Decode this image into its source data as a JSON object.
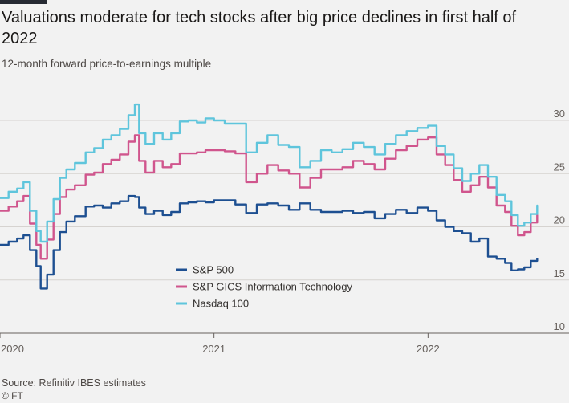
{
  "header": {
    "title": "Valuations moderate for tech stocks after big price declines in first half of 2022",
    "subtitle": "12-month forward price-to-earnings multiple"
  },
  "footer": {
    "source": "Source: Refinitiv IBES estimates",
    "brand": "© FT"
  },
  "chart_data": {
    "type": "line",
    "title": "Valuations moderate for tech stocks after big price declines in first half of 2022",
    "subtitle": "12-month forward price-to-earnings multiple",
    "xlabel": "",
    "ylabel": "",
    "xlim": [
      2020.0,
      2022.52
    ],
    "ylim": [
      10,
      30
    ],
    "yticks": [
      10,
      15,
      20,
      25,
      30
    ],
    "xticks": [
      {
        "value": 2020,
        "label": "2020"
      },
      {
        "value": 2021,
        "label": "2021"
      },
      {
        "value": 2022,
        "label": "2022"
      }
    ],
    "grid": true,
    "legend_position": "lower-left",
    "series": [
      {
        "name": "S&P 500",
        "color": "#1d4f91",
        "points": [
          [
            2020.0,
            18.3
          ],
          [
            2020.04,
            18.6
          ],
          [
            2020.08,
            18.9
          ],
          [
            2020.11,
            19.2
          ],
          [
            2020.14,
            17.8
          ],
          [
            2020.17,
            16.3
          ],
          [
            2020.19,
            14.2
          ],
          [
            2020.22,
            15.5
          ],
          [
            2020.25,
            17.8
          ],
          [
            2020.28,
            19.5
          ],
          [
            2020.31,
            20.5
          ],
          [
            2020.35,
            21.0
          ],
          [
            2020.4,
            21.9
          ],
          [
            2020.44,
            22.0
          ],
          [
            2020.48,
            21.8
          ],
          [
            2020.52,
            22.2
          ],
          [
            2020.56,
            22.4
          ],
          [
            2020.6,
            22.9
          ],
          [
            2020.63,
            22.8
          ],
          [
            2020.65,
            21.8
          ],
          [
            2020.68,
            21.2
          ],
          [
            2020.72,
            21.5
          ],
          [
            2020.76,
            21.1
          ],
          [
            2020.8,
            21.4
          ],
          [
            2020.84,
            22.2
          ],
          [
            2020.88,
            22.3
          ],
          [
            2020.92,
            22.4
          ],
          [
            2020.96,
            22.3
          ],
          [
            2021.0,
            22.5
          ],
          [
            2021.05,
            22.5
          ],
          [
            2021.1,
            22.1
          ],
          [
            2021.15,
            21.3
          ],
          [
            2021.2,
            22.1
          ],
          [
            2021.25,
            22.2
          ],
          [
            2021.3,
            22.0
          ],
          [
            2021.35,
            21.6
          ],
          [
            2021.4,
            22.2
          ],
          [
            2021.45,
            21.6
          ],
          [
            2021.5,
            21.4
          ],
          [
            2021.55,
            21.4
          ],
          [
            2021.6,
            21.5
          ],
          [
            2021.65,
            21.3
          ],
          [
            2021.7,
            21.4
          ],
          [
            2021.75,
            20.8
          ],
          [
            2021.8,
            21.2
          ],
          [
            2021.85,
            21.6
          ],
          [
            2021.9,
            21.3
          ],
          [
            2021.95,
            21.8
          ],
          [
            2022.0,
            21.5
          ],
          [
            2022.04,
            20.6
          ],
          [
            2022.08,
            20.0
          ],
          [
            2022.12,
            19.6
          ],
          [
            2022.16,
            19.4
          ],
          [
            2022.2,
            18.6
          ],
          [
            2022.24,
            18.9
          ],
          [
            2022.28,
            17.2
          ],
          [
            2022.32,
            17.0
          ],
          [
            2022.36,
            16.6
          ],
          [
            2022.39,
            15.9
          ],
          [
            2022.42,
            16.0
          ],
          [
            2022.45,
            16.2
          ],
          [
            2022.48,
            16.8
          ],
          [
            2022.51,
            17.0
          ]
        ]
      },
      {
        "name": "S&P GICS Information Technology",
        "color": "#d0558d",
        "points": [
          [
            2020.0,
            21.5
          ],
          [
            2020.04,
            21.9
          ],
          [
            2020.08,
            22.4
          ],
          [
            2020.11,
            22.9
          ],
          [
            2020.14,
            20.3
          ],
          [
            2020.17,
            18.3
          ],
          [
            2020.19,
            17.0
          ],
          [
            2020.22,
            18.8
          ],
          [
            2020.25,
            21.2
          ],
          [
            2020.28,
            22.8
          ],
          [
            2020.31,
            23.5
          ],
          [
            2020.35,
            23.9
          ],
          [
            2020.4,
            24.9
          ],
          [
            2020.44,
            25.1
          ],
          [
            2020.48,
            25.9
          ],
          [
            2020.52,
            26.3
          ],
          [
            2020.56,
            26.8
          ],
          [
            2020.6,
            28.0
          ],
          [
            2020.63,
            28.6
          ],
          [
            2020.65,
            26.2
          ],
          [
            2020.68,
            25.1
          ],
          [
            2020.72,
            26.2
          ],
          [
            2020.76,
            25.6
          ],
          [
            2020.8,
            25.9
          ],
          [
            2020.84,
            26.9
          ],
          [
            2020.88,
            26.9
          ],
          [
            2020.92,
            27.0
          ],
          [
            2020.96,
            27.2
          ],
          [
            2021.0,
            27.2
          ],
          [
            2021.05,
            27.1
          ],
          [
            2021.1,
            26.9
          ],
          [
            2021.15,
            24.2
          ],
          [
            2021.2,
            25.0
          ],
          [
            2021.25,
            25.8
          ],
          [
            2021.3,
            25.3
          ],
          [
            2021.35,
            25.0
          ],
          [
            2021.4,
            23.7
          ],
          [
            2021.45,
            24.6
          ],
          [
            2021.5,
            25.4
          ],
          [
            2021.55,
            25.4
          ],
          [
            2021.6,
            25.6
          ],
          [
            2021.65,
            26.2
          ],
          [
            2021.7,
            25.9
          ],
          [
            2021.75,
            25.4
          ],
          [
            2021.8,
            26.4
          ],
          [
            2021.85,
            27.2
          ],
          [
            2021.9,
            27.6
          ],
          [
            2021.95,
            28.2
          ],
          [
            2022.0,
            28.4
          ],
          [
            2022.04,
            26.8
          ],
          [
            2022.08,
            25.8
          ],
          [
            2022.12,
            24.4
          ],
          [
            2022.16,
            23.3
          ],
          [
            2022.2,
            23.9
          ],
          [
            2022.24,
            24.7
          ],
          [
            2022.28,
            23.7
          ],
          [
            2022.32,
            22.0
          ],
          [
            2022.36,
            21.4
          ],
          [
            2022.39,
            20.1
          ],
          [
            2022.42,
            19.2
          ],
          [
            2022.45,
            19.5
          ],
          [
            2022.48,
            20.4
          ],
          [
            2022.51,
            21.1
          ]
        ]
      },
      {
        "name": "Nasdaq 100",
        "color": "#5fc5dc",
        "points": [
          [
            2020.0,
            22.7
          ],
          [
            2020.04,
            23.3
          ],
          [
            2020.08,
            23.6
          ],
          [
            2020.11,
            24.2
          ],
          [
            2020.14,
            21.5
          ],
          [
            2020.17,
            19.6
          ],
          [
            2020.19,
            18.6
          ],
          [
            2020.22,
            20.5
          ],
          [
            2020.25,
            22.6
          ],
          [
            2020.28,
            24.6
          ],
          [
            2020.31,
            25.4
          ],
          [
            2020.35,
            26.0
          ],
          [
            2020.4,
            27.0
          ],
          [
            2020.44,
            27.4
          ],
          [
            2020.48,
            28.2
          ],
          [
            2020.52,
            28.6
          ],
          [
            2020.56,
            29.2
          ],
          [
            2020.6,
            30.5
          ],
          [
            2020.63,
            31.5
          ],
          [
            2020.65,
            28.8
          ],
          [
            2020.68,
            27.8
          ],
          [
            2020.72,
            28.8
          ],
          [
            2020.76,
            28.2
          ],
          [
            2020.8,
            28.8
          ],
          [
            2020.84,
            29.9
          ],
          [
            2020.88,
            30.0
          ],
          [
            2020.92,
            29.8
          ],
          [
            2020.96,
            30.2
          ],
          [
            2021.0,
            30.0
          ],
          [
            2021.05,
            29.7
          ],
          [
            2021.1,
            29.7
          ],
          [
            2021.15,
            27.0
          ],
          [
            2021.2,
            27.9
          ],
          [
            2021.25,
            28.6
          ],
          [
            2021.3,
            27.7
          ],
          [
            2021.35,
            27.5
          ],
          [
            2021.4,
            25.6
          ],
          [
            2021.45,
            26.2
          ],
          [
            2021.5,
            27.2
          ],
          [
            2021.55,
            27.0
          ],
          [
            2021.6,
            27.3
          ],
          [
            2021.65,
            27.9
          ],
          [
            2021.7,
            27.5
          ],
          [
            2021.75,
            26.8
          ],
          [
            2021.8,
            27.8
          ],
          [
            2021.85,
            28.6
          ],
          [
            2021.9,
            29.0
          ],
          [
            2021.95,
            29.3
          ],
          [
            2022.0,
            29.5
          ],
          [
            2022.04,
            27.6
          ],
          [
            2022.08,
            26.8
          ],
          [
            2022.12,
            25.5
          ],
          [
            2022.16,
            24.3
          ],
          [
            2022.2,
            25.0
          ],
          [
            2022.24,
            25.8
          ],
          [
            2022.28,
            24.7
          ],
          [
            2022.32,
            23.0
          ],
          [
            2022.36,
            22.4
          ],
          [
            2022.39,
            21.1
          ],
          [
            2022.42,
            20.1
          ],
          [
            2022.45,
            20.4
          ],
          [
            2022.48,
            21.2
          ],
          [
            2022.51,
            22.0
          ]
        ]
      }
    ]
  }
}
